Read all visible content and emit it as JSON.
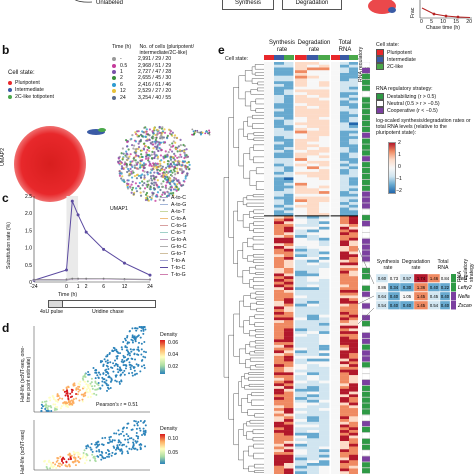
{
  "panel_labels": {
    "b": "b",
    "c": "c",
    "d": "d",
    "e": "e"
  },
  "colors": {
    "pluripotent": "#e8282b",
    "intermediate": "#3b5ba5",
    "two_c_like": "#4aa84a",
    "destabilizing": "#2e9a45",
    "neutral": "#ffffff",
    "cooperative": "#7b3fa0"
  },
  "top": {
    "unlabeled": "Unlabeled",
    "synthesis_box": "Synthesis",
    "degradation_box": "Degradation",
    "chase_time_label": "Chase time (h)",
    "chase_ticks": [
      "0",
      "5",
      "10",
      "15",
      "20"
    ],
    "fraction_label": "Frac"
  },
  "b": {
    "cell_state_title": "Cell state:",
    "cell_states": [
      "Pluripotent",
      "Intermediate",
      "2C-like totipotent"
    ],
    "time_header": "Time (h)",
    "ncells_header": "No. of cells (pluripotent/ intermediate/2C-like)",
    "time_rows": [
      {
        "time": "-",
        "cells": "2,991 / 29 / 20"
      },
      {
        "time": "0.5",
        "cells": "2,968 / 51 / 29"
      },
      {
        "time": "1",
        "cells": "2,727 / 47 / 28"
      },
      {
        "time": "2",
        "cells": "2,655 / 45 / 30"
      },
      {
        "time": "6",
        "cells": "2,416 / 61 / 46"
      },
      {
        "time": "12",
        "cells": "2,529 / 27 / 20"
      },
      {
        "time": "24",
        "cells": "3,254 / 40 / 55"
      }
    ],
    "time_colors": [
      "#999999",
      "#c53b9b",
      "#7a52a8",
      "#3a8f3a",
      "#2f9bd1",
      "#e8c23a",
      "#5b6b8c"
    ],
    "xlabel": "UMAP1",
    "ylabel": "UMAP2"
  },
  "c": {
    "ylabel": "Substitution rate (%)",
    "xlabel": "Time (h)",
    "x_ticks": [
      "-24",
      "0",
      "1",
      "2",
      "6",
      "12",
      "24"
    ],
    "y_ticks": [
      "0",
      "0.5",
      "1.0",
      "1.5",
      "2.0",
      "2.5"
    ],
    "pulse_label": "4sU pulse",
    "chase_label": "Uridine chase",
    "legend": [
      "A-to-C",
      "A-to-G",
      "A-to-T",
      "C-to-A",
      "C-to-G",
      "C-to-T",
      "G-to-A",
      "G-to-C",
      "G-to-T",
      "T-to-A",
      "T-to-C",
      "T-to-G"
    ]
  },
  "chart_data": [
    {
      "type": "line",
      "xlabel": "Time (h)",
      "ylabel": "Substitution rate (%)",
      "x": [
        "-24",
        "0",
        "0.5",
        "1",
        "2",
        "6",
        "12",
        "24"
      ],
      "ylim": [
        0,
        2.5
      ],
      "series": [
        {
          "name": "T-to-C",
          "values": [
            0.05,
            0.35,
            2.35,
            1.95,
            1.45,
            0.95,
            0.55,
            0.2
          ]
        },
        {
          "name": "A-to-C",
          "values": [
            0.05,
            0.05,
            0.08,
            0.08,
            0.08,
            0.08,
            0.07,
            0.06
          ]
        },
        {
          "name": "A-to-G",
          "values": [
            0.06,
            0.07,
            0.09,
            0.09,
            0.09,
            0.08,
            0.08,
            0.07
          ]
        },
        {
          "name": "G-to-A",
          "values": [
            0.07,
            0.08,
            0.1,
            0.1,
            0.1,
            0.1,
            0.09,
            0.08
          ]
        }
      ]
    },
    {
      "type": "scatter",
      "title": "Pearson's r = 0.51",
      "legend_title": "Density",
      "legend_ticks": [
        "0.06",
        "0.04",
        "0.02"
      ]
    },
    {
      "type": "scatter",
      "legend_title": "Density",
      "legend_ticks": [
        "0.10",
        "0.05"
      ]
    }
  ],
  "d": {
    "pearson": "Pearson's r = 0.51",
    "density": "Density",
    "ylabel_1": "Half-life (scNT-seq, one-time point estimate)",
    "ylabel_2": "Half-life (scNT-seq)"
  },
  "e": {
    "col_headers": [
      "Synthesis rate",
      "Degradation rate",
      "Total RNA"
    ],
    "strategy_header": "RNA regulatory strategy",
    "cell_state_label": "Cell state:",
    "legend_cell_state_title": "Cell state:",
    "legend_cell_states": [
      "Pluripotent",
      "Intermediate",
      "2C-like"
    ],
    "strategy_title": "RNA regulatory strategy:",
    "strategies": [
      "Destabilizing (r > 0.5)",
      "Neutral (0.5 > r > −0.5)",
      "Cooperative (r < −0.5)"
    ],
    "colorbar_title": "log-scaled synthesis/degradation rates or total RNA levels (relative to the pluripotent state):",
    "colorbar_ticks": [
      "2",
      "1",
      "0",
      "−1",
      "−2"
    ],
    "inset_headers": [
      "Synthesis rate",
      "Degradation rate",
      "Total RNA",
      "RNA regulatory strategy"
    ],
    "inset_rows": [
      {
        "gene": "Tet1",
        "values": [
          "0.60",
          "0.73",
          "0.57",
          "1.74",
          "1.46",
          "0.84"
        ]
      },
      {
        "gene": "Lefty2",
        "values": [
          "0.86",
          "0.34",
          "0.30",
          "1.36",
          "0.40",
          "0.22"
        ]
      },
      {
        "gene": "Nelfa",
        "values": [
          "0.64",
          "0.40",
          "1.05",
          "1.45",
          "0.45",
          "0.40"
        ]
      },
      {
        "gene": "Zscan4c",
        "values": [
          "0.54",
          "0.40",
          "0.40",
          "1.45",
          "0.54",
          "0.40"
        ]
      }
    ]
  }
}
